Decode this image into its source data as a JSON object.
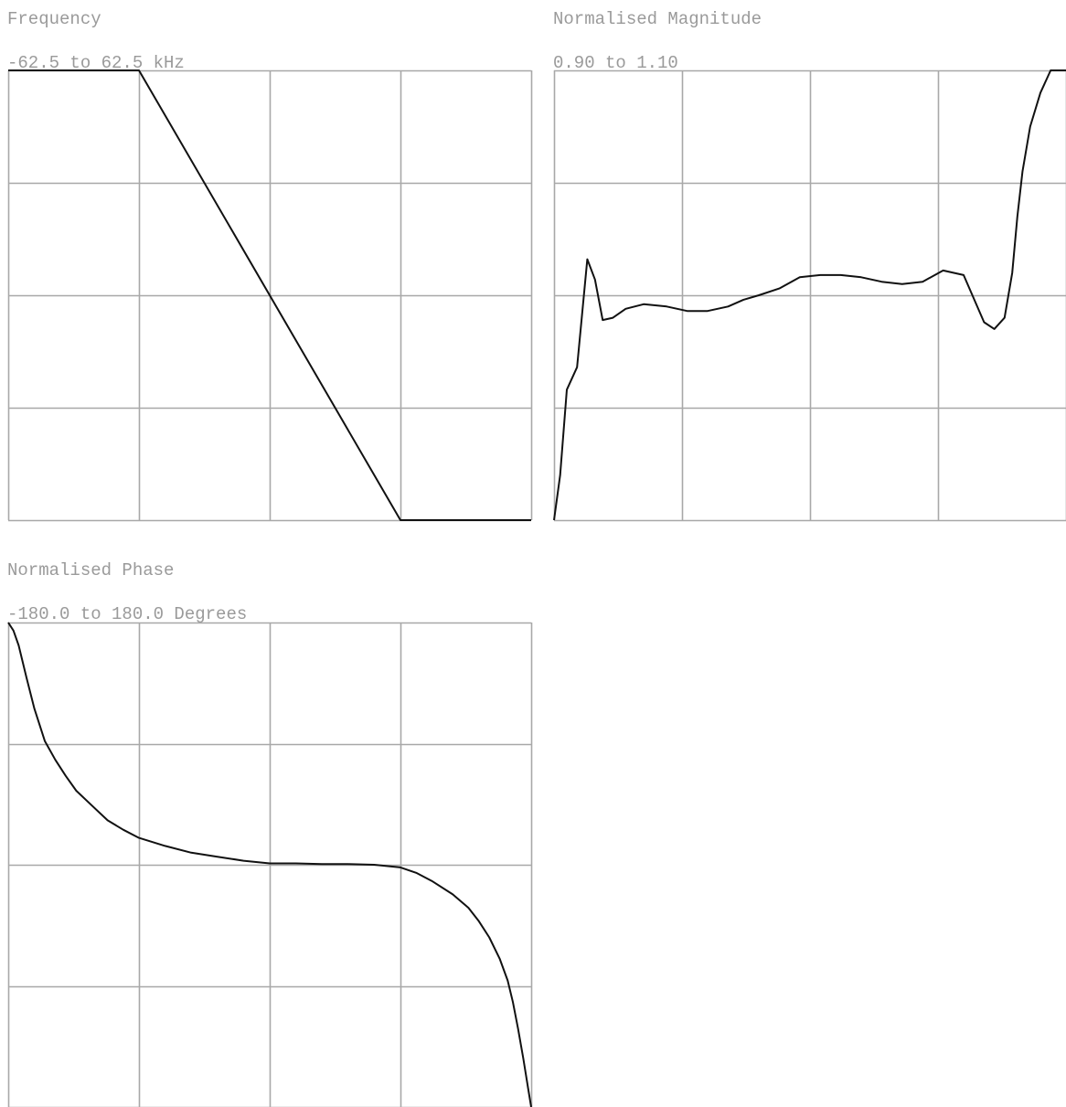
{
  "colors": {
    "grid": "#a8a8a8",
    "trace": "#111111",
    "label": "#9a9a9a",
    "background": "#ffffff"
  },
  "chart_data": [
    {
      "id": "frequency",
      "type": "line",
      "title": "Frequency",
      "range_label": "-62.5 to 62.5 kHz",
      "ylim": [
        -62.5,
        62.5
      ],
      "grid": {
        "cols": 4,
        "rows": 4
      },
      "x": [
        0.0,
        0.25,
        0.75,
        1.0
      ],
      "values": [
        62.5,
        62.5,
        -62.5,
        -62.5
      ]
    },
    {
      "id": "magnitude",
      "type": "line",
      "title": "Normalised Magnitude",
      "range_label": "0.90 to 1.10",
      "ylim": [
        0.9,
        1.1
      ],
      "grid": {
        "cols": 4,
        "rows": 4
      },
      "x": [
        0.0,
        0.012,
        0.025,
        0.045,
        0.065,
        0.08,
        0.095,
        0.115,
        0.14,
        0.175,
        0.22,
        0.26,
        0.3,
        0.34,
        0.37,
        0.4,
        0.44,
        0.48,
        0.52,
        0.56,
        0.6,
        0.64,
        0.68,
        0.72,
        0.76,
        0.8,
        0.84,
        0.86,
        0.88,
        0.895,
        0.905,
        0.915,
        0.93,
        0.95,
        0.97,
        0.99,
        1.0
      ],
      "values": [
        0.9,
        0.92,
        0.958,
        0.968,
        1.016,
        1.007,
        0.989,
        0.99,
        0.994,
        0.996,
        0.995,
        0.993,
        0.993,
        0.995,
        0.998,
        1.0,
        1.003,
        1.008,
        1.009,
        1.009,
        1.008,
        1.006,
        1.005,
        1.006,
        1.011,
        1.009,
        0.988,
        0.985,
        0.99,
        1.01,
        1.035,
        1.055,
        1.075,
        1.09,
        1.1,
        1.1,
        1.1
      ]
    },
    {
      "id": "phase",
      "type": "line",
      "title": "Normalised Phase",
      "range_label": "-180.0 to 180.0 Degrees",
      "ylim": [
        -180.0,
        180.0
      ],
      "grid": {
        "cols": 4,
        "rows": 4
      },
      "x": [
        0.0,
        0.01,
        0.02,
        0.035,
        0.05,
        0.07,
        0.09,
        0.11,
        0.13,
        0.16,
        0.19,
        0.22,
        0.25,
        0.3,
        0.35,
        0.4,
        0.45,
        0.5,
        0.55,
        0.6,
        0.65,
        0.7,
        0.75,
        0.78,
        0.81,
        0.85,
        0.88,
        0.9,
        0.92,
        0.94,
        0.955,
        0.965,
        0.975,
        0.985,
        0.995,
        1.0
      ],
      "values": [
        180.0,
        174.0,
        163.0,
        139.0,
        116.0,
        92.0,
        78.0,
        66.0,
        55.0,
        44.0,
        33.0,
        26.0,
        20.0,
        14.0,
        9.0,
        6.0,
        3.0,
        1.0,
        1.0,
        0.5,
        0.5,
        0.0,
        -2.0,
        -6.0,
        -12.0,
        -22.0,
        -32.0,
        -42.0,
        -54.0,
        -70.0,
        -86.0,
        -102.0,
        -122.0,
        -144.0,
        -168.0,
        -180.0
      ]
    }
  ]
}
